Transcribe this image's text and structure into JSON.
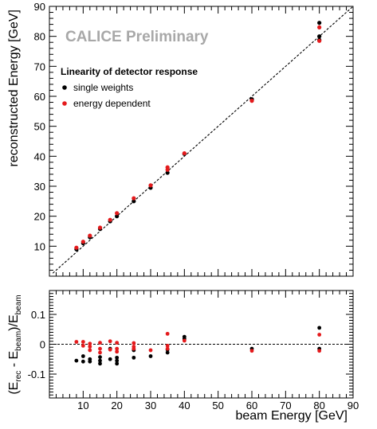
{
  "chart_data": [
    {
      "type": "scatter",
      "title": "",
      "watermark": "CALICE Preliminary",
      "xlabel": "",
      "ylabel": "reconstructed Energy [GeV]",
      "xlim": [
        0,
        90
      ],
      "ylim": [
        0,
        90
      ],
      "yticks": [
        10,
        20,
        30,
        40,
        50,
        60,
        70,
        80,
        90
      ],
      "grid": false,
      "legend": {
        "title": "Linearity of detector response",
        "placement": "top-left",
        "entries": [
          "single weights",
          "energy dependent"
        ]
      },
      "reference_line": "y = x (dashed)",
      "series": [
        {
          "name": "single weights",
          "color": "#000000",
          "points": [
            [
              8,
              9.0
            ],
            [
              10,
              11.0
            ],
            [
              12,
              13.0
            ],
            [
              15,
              15.8
            ],
            [
              18,
              18.3
            ],
            [
              20,
              20.0
            ],
            [
              25,
              25.0
            ],
            [
              30,
              29.5
            ],
            [
              35,
              34.5
            ],
            [
              40,
              40.8
            ],
            [
              60,
              59.0
            ],
            [
              80,
              78.8
            ],
            [
              80,
              80.0
            ],
            [
              80,
              84.5
            ]
          ]
        },
        {
          "name": "energy dependent",
          "color": "#e41a1c",
          "points": [
            [
              8,
              9.5
            ],
            [
              10,
              11.5
            ],
            [
              12,
              13.5
            ],
            [
              15,
              16.2
            ],
            [
              18,
              18.8
            ],
            [
              20,
              21.0
            ],
            [
              25,
              26.0
            ],
            [
              30,
              30.3
            ],
            [
              35,
              35.5
            ],
            [
              35,
              36.3
            ],
            [
              40,
              41.0
            ],
            [
              60,
              58.5
            ],
            [
              80,
              78.5
            ],
            [
              80,
              83.0
            ]
          ]
        }
      ]
    },
    {
      "type": "scatter",
      "title": "",
      "xlabel": "beam Energy [GeV]",
      "ylabel": "(E_rec - E_beam)/E_beam",
      "ylabel_parts": {
        "open": "(E",
        "rec": "rec",
        "minus": " - E",
        "beam": "beam",
        "close": ")/E",
        "beam2": "beam"
      },
      "xlim": [
        0,
        90
      ],
      "ylim": [
        -0.18,
        0.18
      ],
      "xticks": [
        10,
        20,
        30,
        40,
        50,
        60,
        70,
        80,
        90
      ],
      "yticks": [
        -0.1,
        0,
        0.1
      ],
      "ytick_labels": [
        "-0.1",
        "0",
        "0.1"
      ],
      "grid": false,
      "reference_line": "y = 0 (dashed)",
      "series": [
        {
          "name": "single weights",
          "color": "#000000",
          "points": [
            [
              8,
              -0.055
            ],
            [
              10,
              -0.04
            ],
            [
              10,
              -0.058
            ],
            [
              12,
              -0.05
            ],
            [
              12,
              -0.058
            ],
            [
              15,
              -0.043
            ],
            [
              15,
              -0.055
            ],
            [
              15,
              -0.065
            ],
            [
              18,
              -0.015
            ],
            [
              18,
              -0.05
            ],
            [
              20,
              -0.045
            ],
            [
              20,
              -0.055
            ],
            [
              20,
              -0.065
            ],
            [
              25,
              -0.02
            ],
            [
              25,
              -0.045
            ],
            [
              30,
              -0.04
            ],
            [
              35,
              -0.018
            ],
            [
              35,
              -0.028
            ],
            [
              40,
              0.025
            ],
            [
              40,
              0.018
            ],
            [
              60,
              -0.015
            ],
            [
              80,
              0.055
            ],
            [
              80,
              -0.015
            ]
          ]
        },
        {
          "name": "energy dependent",
          "color": "#e41a1c",
          "points": [
            [
              8,
              0.008
            ],
            [
              10,
              0.008
            ],
            [
              10,
              -0.005
            ],
            [
              12,
              0.002
            ],
            [
              12,
              -0.008
            ],
            [
              12,
              -0.02
            ],
            [
              15,
              0.005
            ],
            [
              15,
              -0.015
            ],
            [
              15,
              -0.028
            ],
            [
              18,
              0.01
            ],
            [
              18,
              -0.018
            ],
            [
              20,
              0.005
            ],
            [
              20,
              -0.015
            ],
            [
              20,
              -0.025
            ],
            [
              25,
              0.004
            ],
            [
              25,
              -0.008
            ],
            [
              25,
              -0.015
            ],
            [
              30,
              -0.02
            ],
            [
              35,
              0.035
            ],
            [
              35,
              -0.005
            ],
            [
              35,
              -0.015
            ],
            [
              40,
              0.012
            ],
            [
              60,
              -0.022
            ],
            [
              80,
              0.032
            ],
            [
              80,
              -0.022
            ]
          ]
        }
      ]
    }
  ]
}
